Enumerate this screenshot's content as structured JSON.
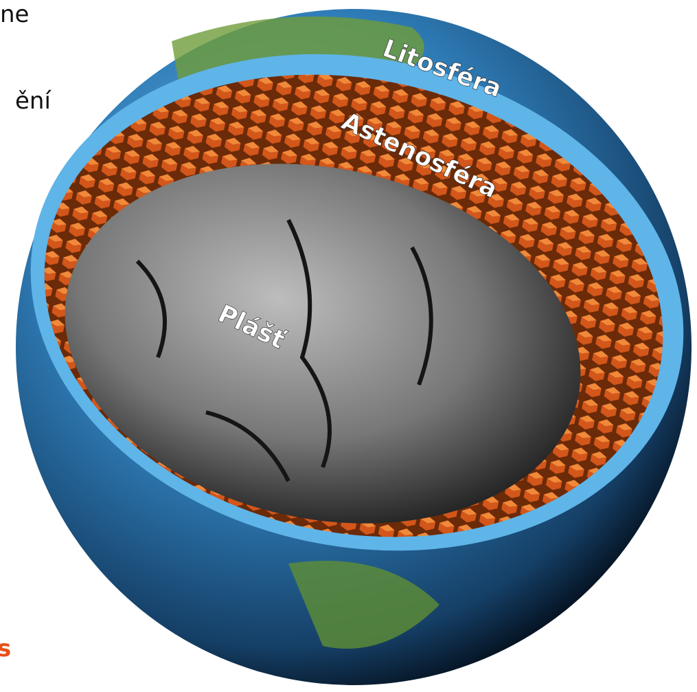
{
  "side_text": {
    "line1": "ne",
    "line2": "ění",
    "line3": "s"
  },
  "labels": {
    "lithosphere": "Litosféra",
    "asthenosphere": "Astenosféra",
    "mantle": "Plášť"
  }
}
